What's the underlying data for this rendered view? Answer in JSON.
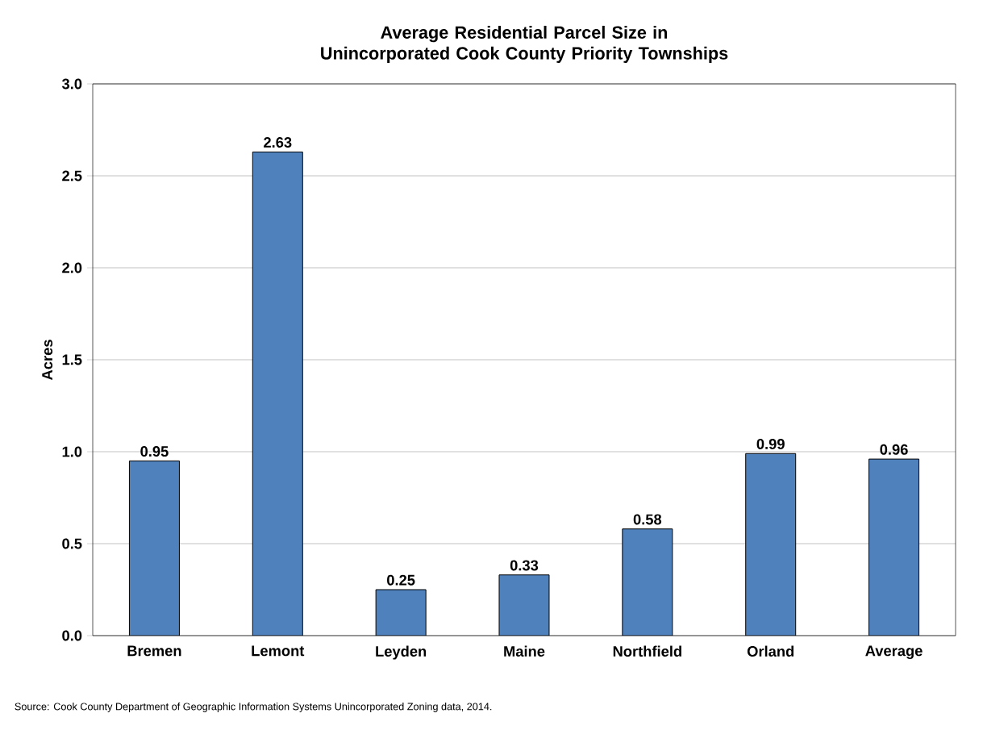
{
  "chart_data": {
    "type": "bar",
    "title": "Average Residential Parcel Size in Unincorporated Cook County Priority Townships",
    "ylabel": "Acres",
    "categories": [
      "Bremen",
      "Lemont",
      "Leyden",
      "Maine",
      "Northfield",
      "Orland",
      "Average"
    ],
    "values": [
      0.95,
      2.63,
      0.25,
      0.33,
      0.58,
      0.99,
      0.96
    ],
    "color": "#4f81bd",
    "ylim": [
      0,
      3
    ],
    "yticks": [
      {
        "value": 0,
        "label": "0.0"
      },
      {
        "value": 0.5,
        "label": "0.5"
      },
      {
        "value": 1,
        "label": "1.0"
      },
      {
        "value": 1.5,
        "label": "1.5"
      },
      {
        "value": 2,
        "label": "2.0"
      },
      {
        "value": 2.5,
        "label": "2.5"
      },
      {
        "value": 3,
        "label": "3.0"
      }
    ],
    "grid": "y",
    "data_labels": true,
    "annotations": [
      "Source: Cook County Department of Geographic Information Systems Unincorporated Zoning data, 2014."
    ]
  }
}
